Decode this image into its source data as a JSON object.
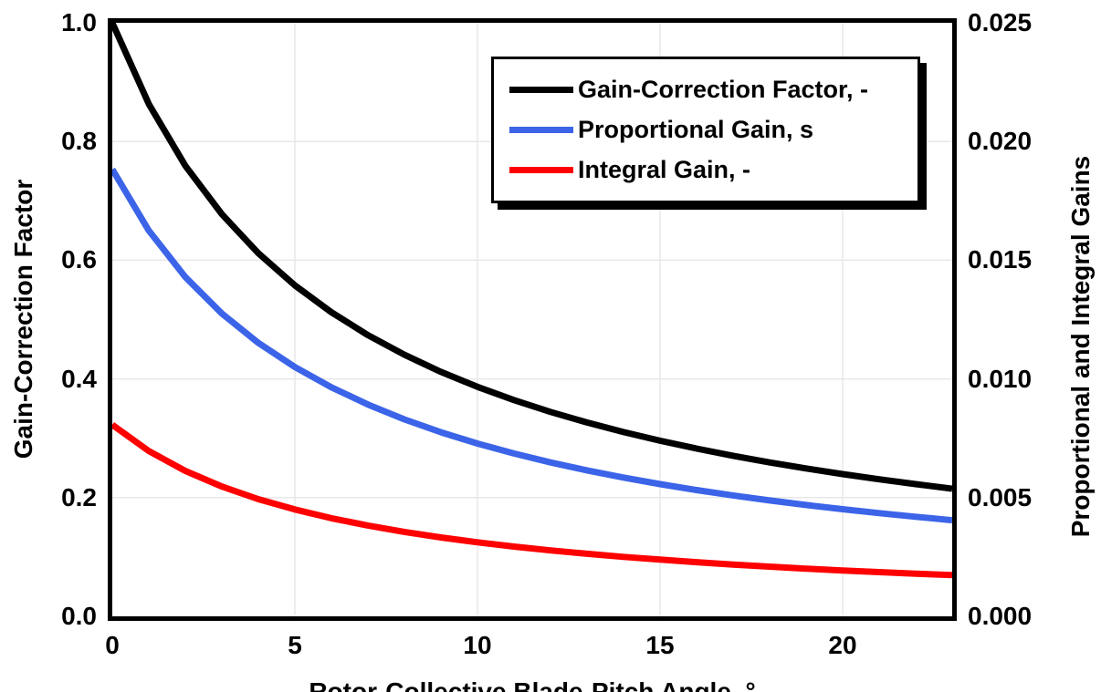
{
  "chart_data": {
    "type": "line",
    "title": "",
    "xlabel": "Rotor-Collective Blade-Pitch Angle, °",
    "ylabel_left": "Gain-Correction Factor",
    "ylabel_right": "Proportional and Integral Gains",
    "xlim": [
      0,
      23
    ],
    "ylim_left": [
      0.0,
      1.0
    ],
    "ylim_right": [
      0.0,
      0.025
    ],
    "xticks": [
      0,
      5,
      10,
      15,
      20
    ],
    "xtick_labels": [
      "0",
      "5",
      "10",
      "15",
      "20"
    ],
    "ytick_labels_left": [
      "0.0",
      "0.2",
      "0.4",
      "0.6",
      "0.8",
      "1.0"
    ],
    "ytick_labels_right": [
      "0.000",
      "0.005",
      "0.010",
      "0.015",
      "0.020",
      "0.025"
    ],
    "grid": true,
    "gridline_color": "#e8e8e8",
    "legend_position": "top-center-inside",
    "x": [
      0,
      1,
      2,
      3,
      4,
      5,
      6,
      7,
      8,
      9,
      10,
      11,
      12,
      13,
      14,
      15,
      16,
      17,
      18,
      19,
      20,
      21,
      22,
      23
    ],
    "series": [
      {
        "name": "Gain-Correction Factor, -",
        "color": "#000000",
        "axis": "left",
        "values": [
          1.0,
          0.8631,
          0.7591,
          0.6775,
          0.6117,
          0.5576,
          0.5123,
          0.4738,
          0.4407,
          0.4119,
          0.3866,
          0.3643,
          0.3444,
          0.3265,
          0.3104,
          0.2959,
          0.2826,
          0.2705,
          0.2593,
          0.2491,
          0.2396,
          0.2308,
          0.2227,
          0.2151
        ]
      },
      {
        "name": "Proportional Gain, s",
        "color": "#3c64e8",
        "axis": "right",
        "values": [
          0.018827,
          0.016248,
          0.014291,
          0.012755,
          0.011517,
          0.010498,
          0.009645,
          0.00892,
          0.008296,
          0.007754,
          0.007278,
          0.006858,
          0.006483,
          0.006147,
          0.005844,
          0.00557,
          0.00532,
          0.005092,
          0.004882,
          0.004689,
          0.004511,
          0.004346,
          0.004192,
          0.004049
        ]
      },
      {
        "name": "Integral Gain, -",
        "color": "#ff0000",
        "axis": "right",
        "values": [
          0.008069,
          0.006964,
          0.006125,
          0.005467,
          0.004936,
          0.004499,
          0.004134,
          0.003823,
          0.003556,
          0.003323,
          0.003119,
          0.002939,
          0.002778,
          0.002634,
          0.002505,
          0.002387,
          0.00228,
          0.002182,
          0.002092,
          0.00201,
          0.001933,
          0.001862,
          0.001797,
          0.001735
        ]
      }
    ]
  },
  "colors": {
    "frame": "#000000",
    "background": "#ffffff",
    "gridline": "#e8e8e8",
    "gain_correction": "#000000",
    "proportional_gain": "#3c64e8",
    "integral_gain": "#ff0000"
  }
}
